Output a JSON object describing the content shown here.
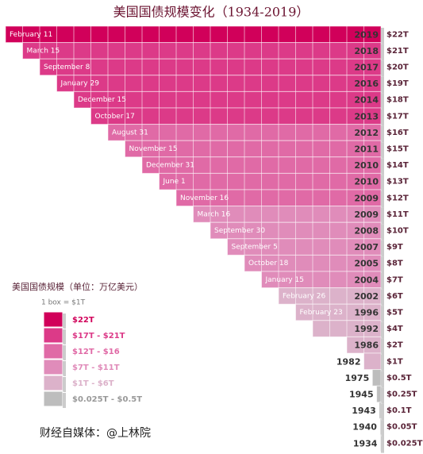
{
  "chart_data": {
    "type": "staircase",
    "title": "美国国债规模变化（1934-2019）",
    "categories": [
      "2019",
      "2018",
      "2017",
      "2016",
      "2014",
      "2013",
      "2012",
      "2011",
      "2010",
      "2010",
      "2009",
      "2009",
      "2008",
      "2007",
      "2005",
      "2004",
      "2002",
      "1996",
      "1992",
      "1986",
      "1982",
      "1975",
      "1945",
      "1943",
      "1940",
      "1934"
    ],
    "dates": [
      "February 11",
      "March 15",
      "September 8",
      "January 29",
      "December 15",
      "October 17",
      "August 31",
      "November 15",
      "December 31",
      "June 1",
      "November 16",
      "March 16",
      "September 30",
      "September 5",
      "October 18",
      "January 15",
      "February 26",
      "February 23",
      null,
      null,
      null,
      null,
      null,
      null,
      null,
      null
    ],
    "values": [
      22,
      21,
      20,
      19,
      18,
      17,
      16,
      15,
      14,
      13,
      12,
      11,
      10,
      9,
      8,
      7,
      6,
      5,
      4,
      2,
      1,
      0.5,
      0.25,
      0.1,
      0.05,
      0.025
    ],
    "value_labels": [
      "$22T",
      "$21T",
      "$20T",
      "$19T",
      "$18T",
      "$17T",
      "$16T",
      "$15T",
      "$14T",
      "$13T",
      "$12T",
      "$11T",
      "$10T",
      "$9T",
      "$8T",
      "$7T",
      "$6T",
      "$5T",
      "$4T",
      "$2T",
      "$1T",
      "$0.5T",
      "$0.25T",
      "$0.1T",
      "$0.05T",
      "$0.025T"
    ],
    "colors": [
      "#d1005a",
      "#dc3a88",
      "#dc3a88",
      "#dc3a88",
      "#dc3a88",
      "#dc3a88",
      "#e06aa6",
      "#e06aa6",
      "#e06aa6",
      "#e06aa6",
      "#e06aa6",
      "#e08cba",
      "#e08cba",
      "#e08cba",
      "#e08cba",
      "#e08cba",
      "#dcb2ca",
      "#dcb2ca",
      "#dcb2ca",
      "#dcb2ca",
      "#dcb2ca",
      "#bdbdbd",
      "#bdbdbd",
      "#bdbdbd",
      "#bdbdbd",
      "#bdbdbd"
    ],
    "legend": {
      "title": "美国国债规模（单位：万亿美元）",
      "note": "1 box = $1T",
      "items": [
        {
          "label": "$22T",
          "color": "#d1005a"
        },
        {
          "label": "$17T - $21T",
          "color": "#dc3a88"
        },
        {
          "label": "$12T - $16",
          "color": "#e06aa6"
        },
        {
          "label": "$7T - $11T",
          "color": "#e08cba"
        },
        {
          "label": "$1T - $6T",
          "color": "#dcb2ca"
        },
        {
          "label": "$0.025T - $0.5T",
          "color": "#bdbdbd"
        }
      ]
    }
  },
  "footer": "财经自媒体：@上林院"
}
